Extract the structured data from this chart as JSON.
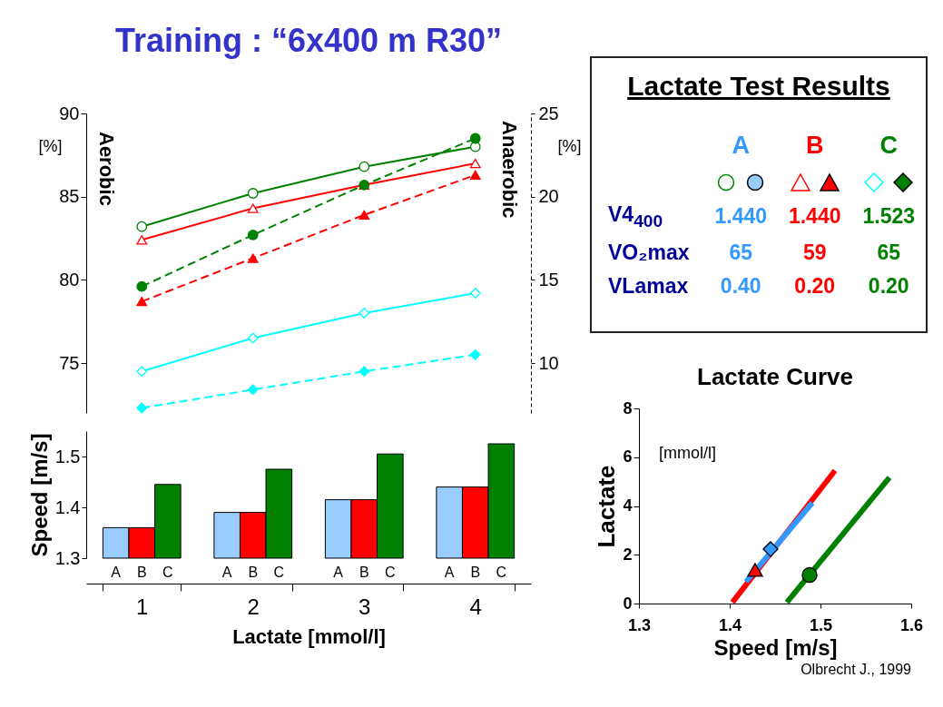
{
  "chart_data": [
    {
      "type": "line",
      "title": "Training : “6x400 m R30”",
      "ylabel": "[%]",
      "y2label": "[%]",
      "categories": [
        null,
        null,
        null,
        null
      ],
      "ylim": [
        72,
        90
      ],
      "yticks": [
        75,
        80,
        85,
        90
      ],
      "y2lim": [
        7,
        25
      ],
      "y2ticks": [
        10,
        15,
        20,
        25
      ],
      "tick_labels": "y",
      "annotations": [
        "Aerobic",
        "Anaerobic"
      ],
      "series": [
        {
          "color": "#008000",
          "marker": "circle",
          "line_style": "solid",
          "values": [
            83.2,
            85.2,
            86.8,
            88.0
          ]
        },
        {
          "color": "#ff0000",
          "marker": "triangle",
          "line_style": "solid",
          "values": [
            82.4,
            84.3,
            85.7,
            87.0
          ]
        },
        {
          "color": "#00ffff",
          "marker": "diamond",
          "line_style": "solid",
          "values": [
            74.5,
            76.5,
            78.0,
            79.2
          ]
        },
        {
          "color": "#008000",
          "marker": "circle",
          "line_style": "dashed",
          "axis": "y2",
          "values": [
            14.6,
            17.7,
            20.7,
            23.5
          ]
        },
        {
          "color": "#ff0000",
          "marker": "triangle",
          "line_style": "dashed",
          "axis": "y2",
          "values": [
            13.7,
            16.3,
            18.9,
            21.3
          ]
        },
        {
          "color": "#00ffff",
          "marker": "diamond",
          "line_style": "dashed",
          "axis": "y2",
          "values": [
            7.3,
            8.4,
            9.5,
            10.5
          ]
        }
      ]
    },
    {
      "type": "bar",
      "categories": [
        "1",
        "2",
        "3",
        "4"
      ],
      "xlabel": "Lactate [mmol/l]",
      "ylabel": "Speed [m/s]",
      "ylim": [
        1.3,
        1.55
      ],
      "yticks": [
        1.3,
        1.4,
        1.5
      ],
      "series": [
        {
          "name": "A",
          "color": "#99ccff",
          "values": [
            1.36,
            1.39,
            1.415,
            1.44
          ]
        },
        {
          "name": "B",
          "color": "#ff0000",
          "values": [
            1.36,
            1.39,
            1.415,
            1.44
          ]
        },
        {
          "name": "C",
          "color": "#008000",
          "values": [
            1.445,
            1.475,
            1.505,
            1.525
          ]
        }
      ]
    },
    {
      "type": "other",
      "title": "Lactate Test Results",
      "categories": [
        "A",
        "B",
        "C"
      ],
      "colors": [
        "#3399ff",
        "#ff0000",
        "#008000"
      ],
      "series": [
        {
          "name": "V4$_{400}$",
          "values": [
            1.44,
            1.44,
            1.523
          ],
          "value_labels": [
            "1.440",
            "1.440",
            "1.523"
          ]
        },
        {
          "name": "VO₂max",
          "values": [
            65,
            59,
            65
          ],
          "value_labels": [
            "65",
            "59",
            "65"
          ]
        },
        {
          "name": "VLamax",
          "values": [
            0.4,
            0.2,
            0.2
          ],
          "value_labels": [
            "0.40",
            "0.20",
            "0.20"
          ]
        }
      ]
    },
    {
      "type": "line",
      "title": "Lactate Curve",
      "xlabel": "Speed [m/s]",
      "ylabel": "Lactate",
      "xlim": [
        1.3,
        1.6
      ],
      "xticks": [
        1.3,
        1.4,
        1.5,
        1.6
      ],
      "ylim": [
        0,
        8
      ],
      "yticks": [
        0,
        2,
        4,
        6,
        8
      ],
      "annotations": [
        "[mmol/l]",
        "Olbrecht J., 1999"
      ],
      "series": [
        {
          "color": "#ff0000",
          "x": [
            1.403,
            1.516
          ],
          "values": [
            0.05,
            5.45
          ]
        },
        {
          "color": "#3399ff",
          "x": [
            1.418,
            1.491
          ],
          "values": [
            0.9,
            4.13
          ]
        },
        {
          "color": "#008000",
          "x": [
            1.463,
            1.576
          ],
          "values": [
            0.05,
            5.17
          ]
        },
        {
          "type": "scatter",
          "color": "#ff0000",
          "marker": "triangle",
          "x": [
            1.428
          ],
          "values": [
            1.38
          ]
        },
        {
          "type": "scatter",
          "color": "#3399ff",
          "marker": "diamond",
          "x": [
            1.445
          ],
          "values": [
            2.23
          ]
        },
        {
          "type": "scatter",
          "color": "#008000",
          "marker": "circle",
          "x": [
            1.488
          ],
          "values": [
            1.17
          ]
        }
      ]
    }
  ]
}
